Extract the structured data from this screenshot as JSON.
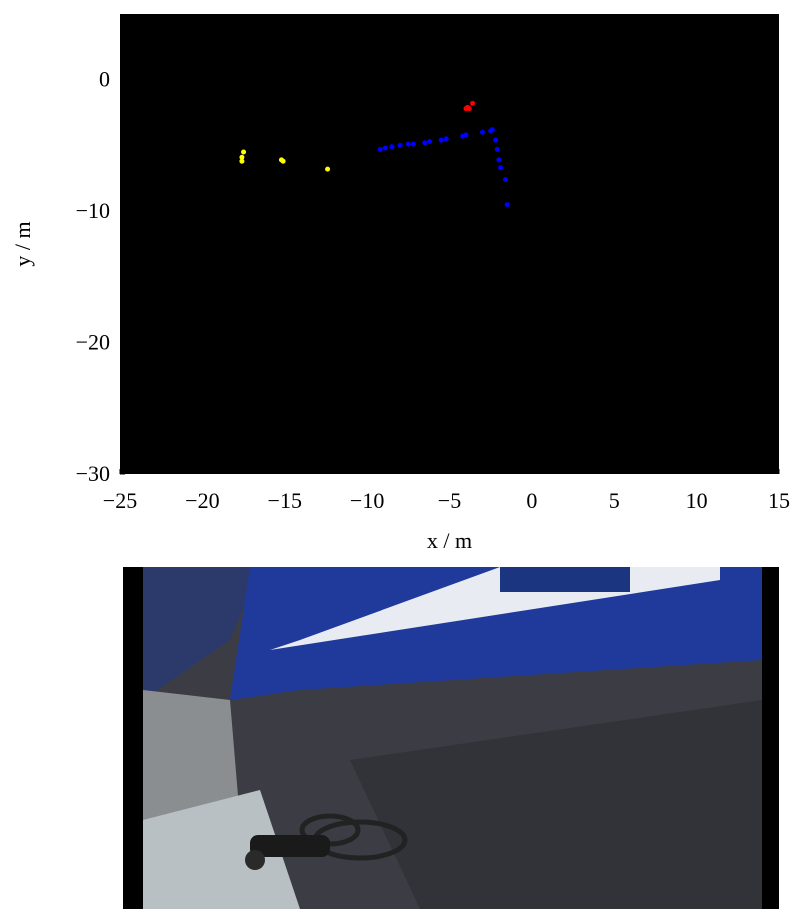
{
  "chart_data": {
    "type": "scatter",
    "xlabel": "x / m",
    "ylabel": "y / m",
    "xlim": [
      -25,
      15
    ],
    "ylim": [
      -30,
      5
    ],
    "xticks": [
      {
        "value": -25,
        "label": "−25"
      },
      {
        "value": -20,
        "label": "−20"
      },
      {
        "value": -15,
        "label": "−15"
      },
      {
        "value": -10,
        "label": "−10"
      },
      {
        "value": -5,
        "label": "−5"
      },
      0,
      5,
      10,
      15
    ],
    "yticks": [
      {
        "value": -30,
        "label": "−30"
      },
      {
        "value": -20,
        "label": "−20"
      },
      {
        "value": -10,
        "label": "−10"
      },
      0
    ],
    "background": "#000000",
    "series": [
      {
        "color": "#ffff00",
        "x": [
          -17.5,
          -17.6,
          -17.6,
          -15.2,
          -15.1,
          -12.4
        ],
        "values": [
          -5.5,
          -5.9,
          -6.2,
          -6.1,
          -6.2,
          -6.8
        ]
      },
      {
        "color": "#ff0000",
        "x": [
          -3.9,
          -3.6,
          -3.8,
          -4.0
        ],
        "values": [
          -2.1,
          -1.8,
          -2.2,
          -2.2
        ]
      },
      {
        "color": "#0000ff",
        "x": [
          -9.2,
          -8.9,
          -8.5,
          -8.0,
          -7.5,
          -7.2,
          -6.5,
          -6.2,
          -5.5,
          -5.2,
          -4.2,
          -4.0,
          -3.0,
          -2.5,
          -2.4,
          -2.2,
          -2.1,
          -2.0,
          -1.9,
          -1.6,
          -1.5
        ],
        "values": [
          -5.3,
          -5.2,
          -5.1,
          -5.0,
          -4.9,
          -4.9,
          -4.8,
          -4.7,
          -4.6,
          -4.5,
          -4.3,
          -4.2,
          -4.0,
          -3.9,
          -3.8,
          -4.6,
          -5.3,
          -6.1,
          -6.7,
          -7.6,
          -9.5
        ]
      }
    ]
  }
}
